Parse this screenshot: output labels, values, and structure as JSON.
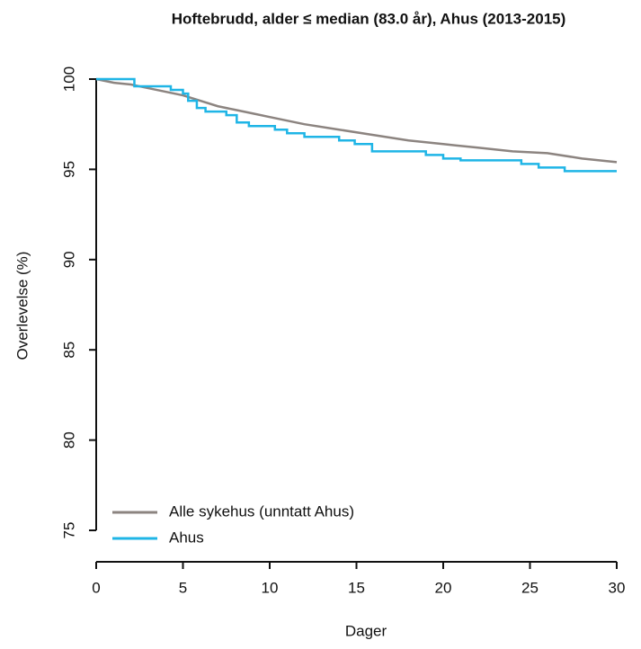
{
  "chart_data": {
    "type": "line",
    "title": "Hoftebrudd, alder ≤ median (83.0 år), Ahus (2013-2015)",
    "xlabel": "Dager",
    "ylabel": "Overlevelse (%)",
    "xlim": [
      0,
      30
    ],
    "ylim": [
      75,
      100
    ],
    "xticks": [
      0,
      5,
      10,
      15,
      20,
      25,
      30
    ],
    "yticks": [
      75,
      80,
      85,
      90,
      95,
      100
    ],
    "legend": "bottom-left",
    "series": [
      {
        "name": "Alle sykehus (unntatt Ahus)",
        "color": "#8c8480",
        "x": [
          0,
          1,
          2,
          3,
          4,
          5,
          6,
          7,
          8,
          9,
          10,
          12,
          14,
          16,
          18,
          20,
          22,
          24,
          26,
          28,
          30
        ],
        "values": [
          100,
          99.8,
          99.7,
          99.5,
          99.3,
          99.1,
          98.8,
          98.5,
          98.3,
          98.1,
          97.9,
          97.5,
          97.2,
          96.9,
          96.6,
          96.4,
          96.2,
          96.0,
          95.9,
          95.6,
          95.4
        ]
      },
      {
        "name": "Ahus",
        "color": "#1fb5e6",
        "x": [
          0,
          2.2,
          2.2,
          4.3,
          4.3,
          5,
          5,
          5.3,
          5.3,
          5.8,
          5.8,
          6.3,
          6.3,
          7.5,
          7.5,
          8.1,
          8.1,
          8.8,
          8.8,
          10.3,
          10.3,
          11,
          11,
          12,
          12,
          14,
          14,
          14.9,
          14.9,
          15.9,
          15.9,
          19,
          19,
          20,
          20,
          21,
          21,
          24.5,
          24.5,
          25.5,
          25.5,
          27,
          27,
          30
        ],
        "values": [
          100,
          100,
          99.6,
          99.6,
          99.4,
          99.4,
          99.2,
          99.2,
          98.8,
          98.8,
          98.4,
          98.4,
          98.2,
          98.2,
          98.0,
          98.0,
          97.6,
          97.6,
          97.4,
          97.4,
          97.2,
          97.2,
          97.0,
          97.0,
          96.8,
          96.8,
          96.6,
          96.6,
          96.4,
          96.4,
          96.0,
          96.0,
          95.8,
          95.8,
          95.6,
          95.6,
          95.5,
          95.5,
          95.3,
          95.3,
          95.1,
          95.1,
          94.9,
          94.9
        ]
      }
    ]
  }
}
